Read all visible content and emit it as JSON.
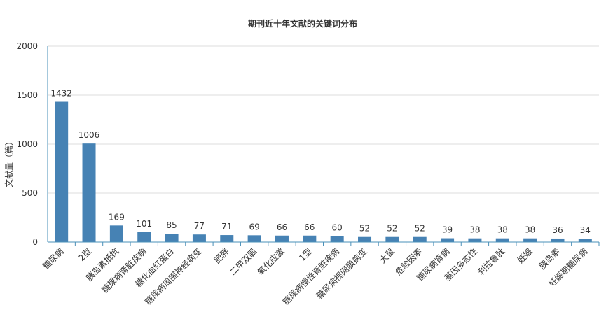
{
  "chart_data": {
    "type": "bar",
    "title": "期刊近十年文献的关键词分布",
    "xlabel": "",
    "ylabel": "文献量（篇）",
    "ylim": [
      0,
      2000
    ],
    "yticks": [
      0,
      500,
      1000,
      1500,
      2000
    ],
    "grid": true,
    "legend": "none",
    "bar_color": "#4682b4",
    "axis_color": "#4a90b8",
    "grid_color": "#dddddd",
    "categories": [
      "糖尿病",
      "2型",
      "胰岛素抵抗",
      "糖尿病肾脏疾病",
      "糖化血红蛋白",
      "糖尿病周围神经病变",
      "肥胖",
      "二甲双胍",
      "氧化应激",
      "1型",
      "糖尿病慢性肾脏疾病",
      "糖尿病视网膜病变",
      "大鼠",
      "危险因素",
      "糖尿病肾病",
      "基因多态性",
      "利拉鲁肽",
      "妊娠",
      "胰岛素",
      "妊娠期糖尿病"
    ],
    "values": [
      1432,
      1006,
      169,
      101,
      85,
      77,
      71,
      69,
      66,
      66,
      60,
      52,
      52,
      52,
      39,
      38,
      38,
      38,
      36,
      34
    ]
  }
}
